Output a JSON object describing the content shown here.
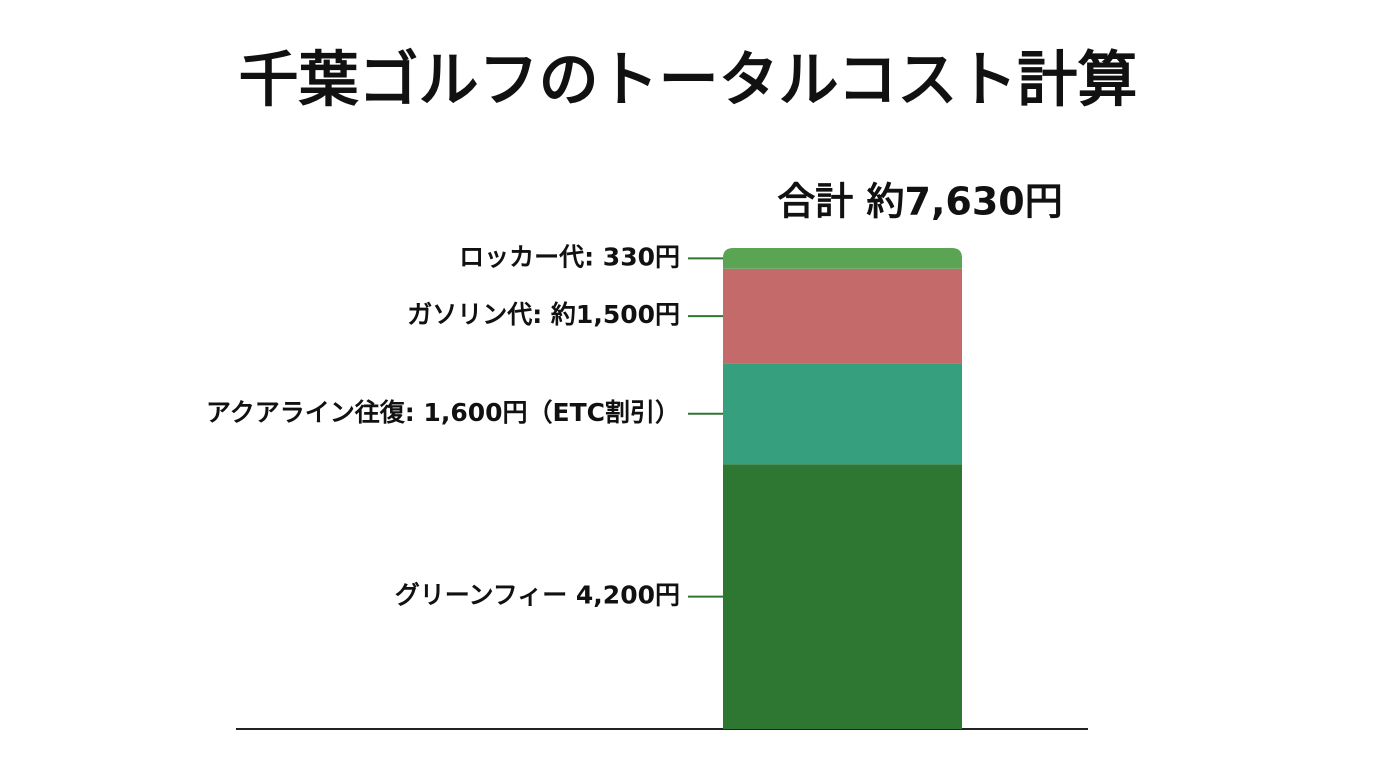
{
  "chart_data": {
    "type": "stacked-bar",
    "title": "千葉ゴルフのトータルコスト計算",
    "total_label": "合計 約7,630円",
    "series": [
      {
        "values": [
          4200
        ],
        "value_labels": [
          "グリーンフィー 4,200円"
        ],
        "color": "#2e7732"
      },
      {
        "values": [
          1600
        ],
        "value_labels": [
          "アクアライン往復: 1,600円（ETC割引）"
        ],
        "color": "#36a07e"
      },
      {
        "values": [
          1500
        ],
        "value_labels": [
          "ガソリン代: 約1,500円"
        ],
        "color": "#c56a6a"
      },
      {
        "values": [
          330
        ],
        "value_labels": [
          "ロッカー代: 330円"
        ],
        "color": "#5aa454"
      }
    ]
  }
}
